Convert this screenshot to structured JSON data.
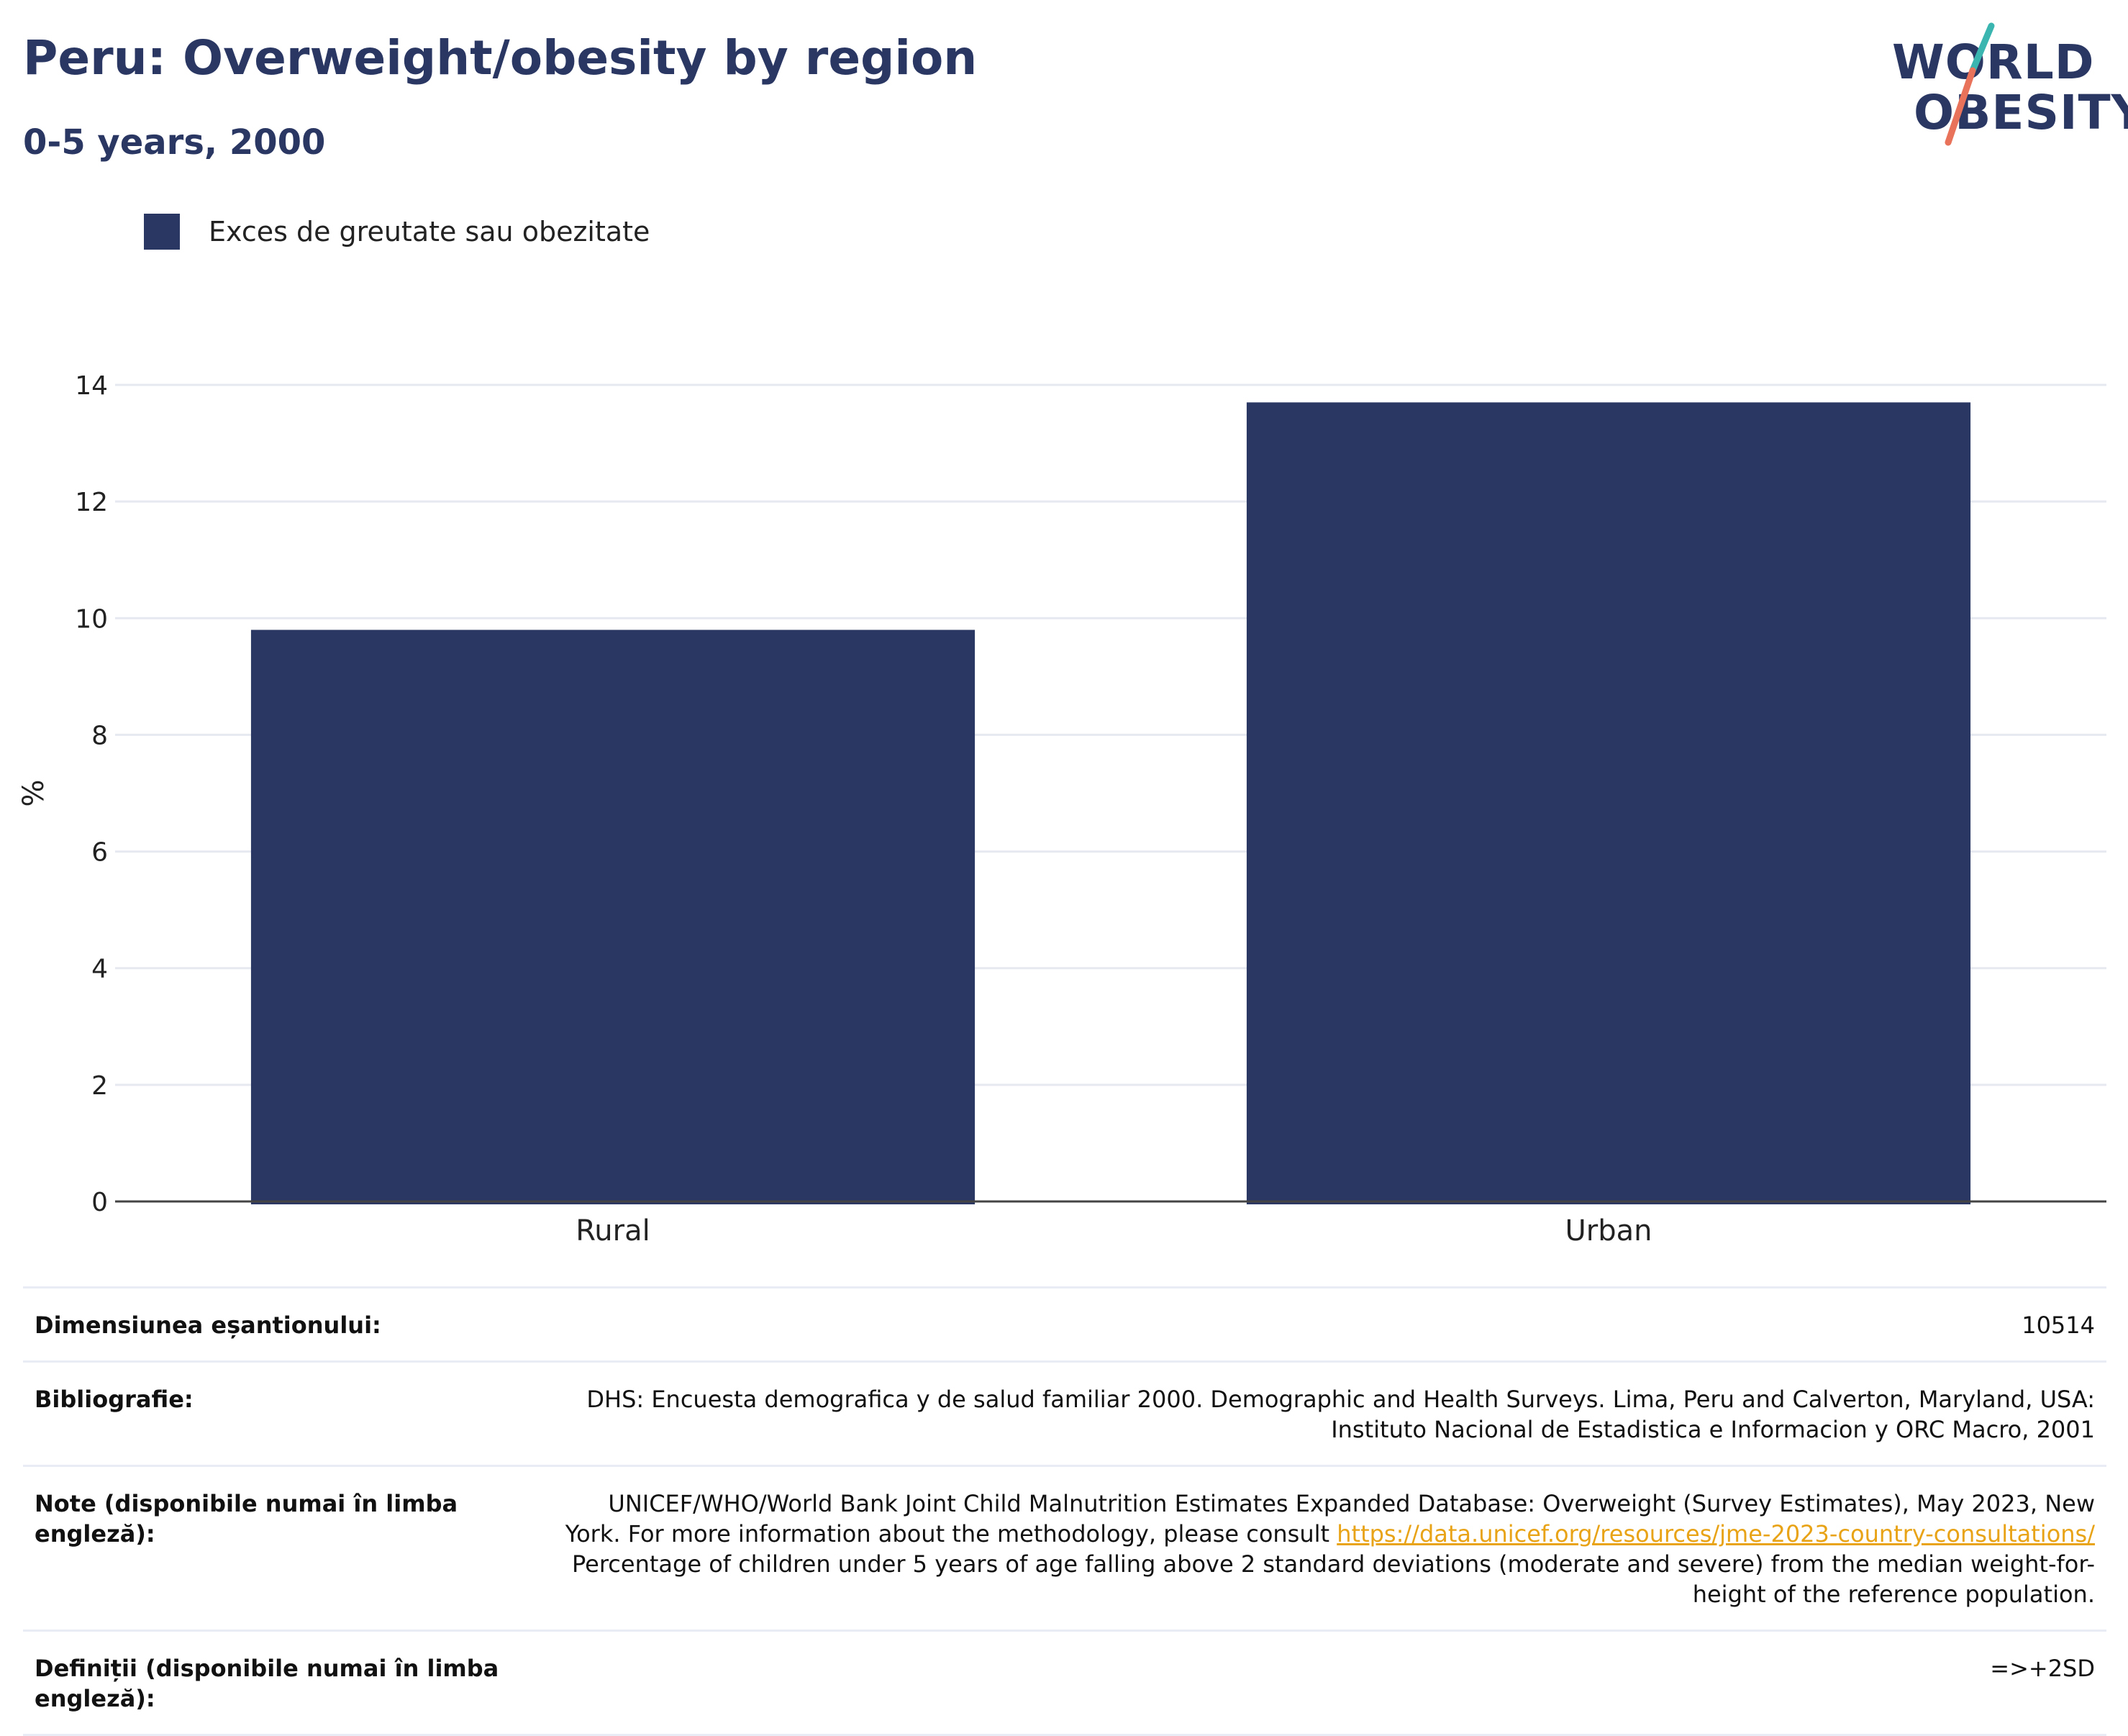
{
  "header": {
    "title": "Peru: Overweight/obesity by region",
    "subtitle": "0-5 years, 2000"
  },
  "logo": {
    "line1": "WORLD",
    "line2": "OBESITY",
    "accent_colors": [
      "#3ab5b0",
      "#e8735a"
    ]
  },
  "legend": {
    "label": "Exces de greutate sau obezitate",
    "color": "#2a3763"
  },
  "chart_data": {
    "type": "bar",
    "categories": [
      "Rural",
      "Urban"
    ],
    "series": [
      {
        "name": "Exces de greutate sau obezitate",
        "values": [
          9.8,
          13.7
        ],
        "color": "#2a3763"
      }
    ],
    "ylabel": "%",
    "xlabel": "",
    "ylim": [
      0,
      14
    ],
    "yticks": [
      0,
      2,
      4,
      6,
      8,
      10,
      12,
      14
    ],
    "grid": true,
    "legend_position": "top-left"
  },
  "info": {
    "sample_size": {
      "label": "Dimensiunea eșantionului:",
      "value": "10514"
    },
    "bibliography": {
      "label": "Bibliografie:",
      "line1": "DHS: Encuesta demografica y de salud familiar 2000. Demographic and Health Surveys. Lima, Peru and Calverton, Maryland, USA:",
      "line2": "Instituto Nacional de Estadistica e Informacion y ORC Macro, 2001"
    },
    "notes": {
      "label": "Note (disponibile numai în limba engleză):",
      "line1": "UNICEF/WHO/World Bank Joint Child Malnutrition Estimates Expanded Database: Overweight (Survey Estimates), May 2023, New",
      "line2_prefix": "York. For more information about the methodology, please consult ",
      "link": "https://data.unicef.org/resources/jme-2023-country-consultations/",
      "line3": "Percentage of children under 5 years of age falling above 2 standard deviations (moderate and severe) from the median weight-for-",
      "line4": "height of the reference population."
    },
    "definitions": {
      "label": "Definiții (disponibile numai în limba engleză):",
      "value": "=>+2SD"
    }
  }
}
